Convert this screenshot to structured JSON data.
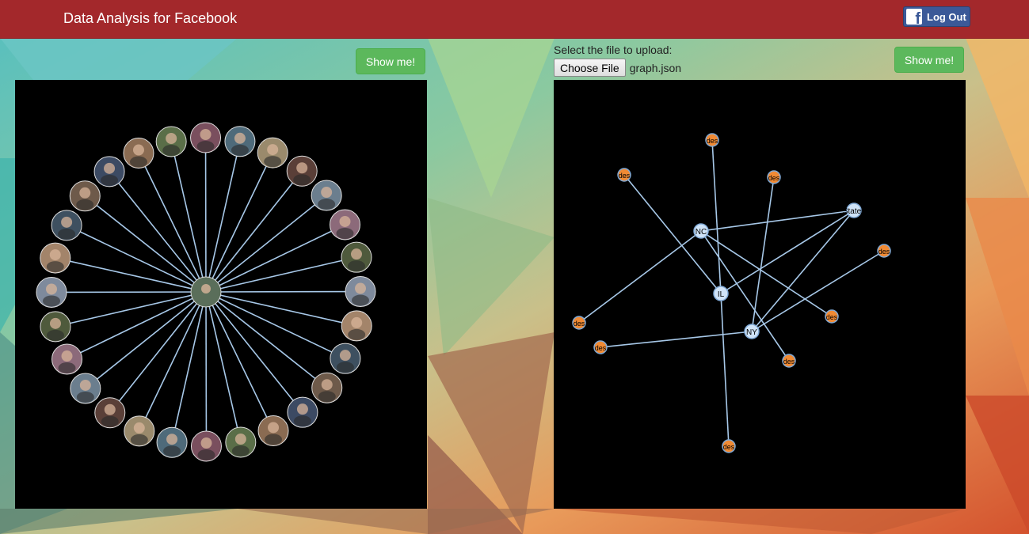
{
  "navbar": {
    "title": "Data Analysis for Facebook",
    "logout_label": "Log Out",
    "color": "#a3282b",
    "facebook_color": "#3b5998"
  },
  "left_panel": {
    "show_button_label": "Show me!",
    "graph": {
      "center_node": "profile-photo",
      "friend_count": 28,
      "link_color": "#a7c8e8"
    }
  },
  "right_panel": {
    "upload_label": "Select the file to upload:",
    "choose_file_label": "Choose File",
    "file_name": "graph.json",
    "show_button_label": "Show me!",
    "graph": {
      "state_nodes": [
        "NC",
        "IL",
        "NY",
        "States"
      ],
      "other_node_label": "des",
      "state_node_color": "#cfe3f7",
      "other_node_color": "#f08a34",
      "link_color": "#a7c8e8"
    }
  }
}
